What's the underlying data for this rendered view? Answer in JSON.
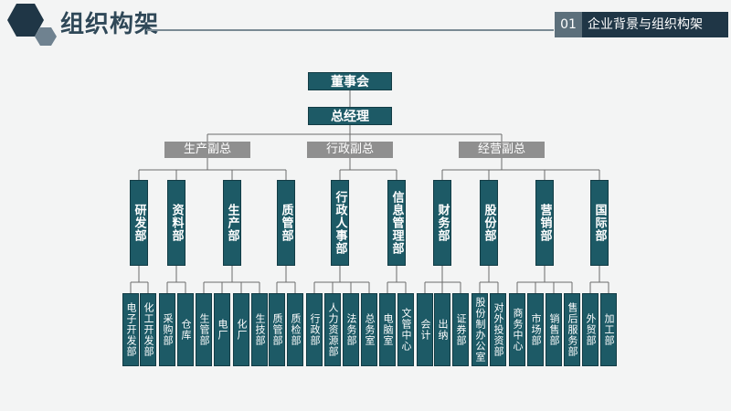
{
  "header": {
    "title": "组织构架",
    "section_number": "01",
    "section_title": "企业背景与组织构架"
  },
  "org": {
    "board": "董事会",
    "general_manager": "总经理",
    "vps": [
      "生产副总",
      "行政副总",
      "经营副总"
    ],
    "departments": [
      "研发部",
      "资料部",
      "生产部",
      "质管部",
      "行政人事部",
      "信息管理部",
      "财务部",
      "股份部",
      "营销部",
      "国际部"
    ],
    "units": [
      "电子开发部",
      "化工开发部",
      "采购部",
      "仓库",
      "生管部",
      "电厂",
      "化厂",
      "生技部",
      "质管部",
      "质检部",
      "行政部",
      "人力资源部",
      "法务部",
      "总务室",
      "电脑室",
      "文管中心",
      "会计",
      "出纳",
      "证券部",
      "股份制办公室",
      "对外投资部",
      "商务中心",
      "市场部",
      "销售部",
      "售后服务部",
      "外贸部",
      "加工部"
    ]
  },
  "colors": {
    "node_dark": "#1d5a66",
    "vp_gray": "#8f8f8f",
    "header_dark": "#1f3646",
    "title_color": "#2f4858"
  }
}
